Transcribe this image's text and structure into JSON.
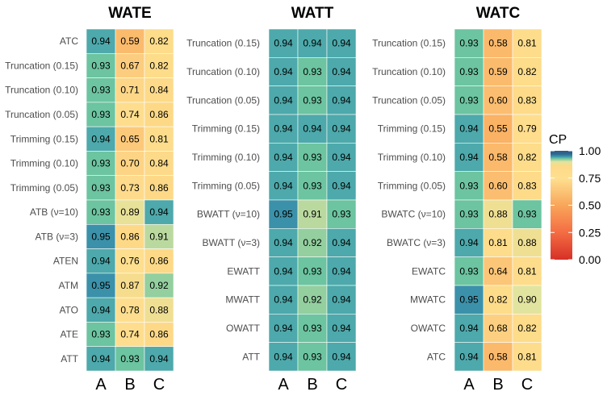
{
  "legend": {
    "title": "CP",
    "ticks": [
      "1.00",
      "0.75",
      "0.50",
      "0.25",
      "0.00"
    ],
    "tick_values": [
      1.0,
      0.75,
      0.5,
      0.25,
      0.0
    ],
    "range": [
      0,
      1
    ],
    "colors": [
      {
        "v": 0.0,
        "c": "#d73027"
      },
      {
        "v": 0.25,
        "c": "#f46d43"
      },
      {
        "v": 0.5,
        "c": "#f9a65a"
      },
      {
        "v": 0.75,
        "c": "#fee090"
      },
      {
        "v": 0.86,
        "c": "#fdd987"
      },
      {
        "v": 0.9,
        "c": "#e1e49e"
      },
      {
        "v": 0.93,
        "c": "#6cc4a0"
      },
      {
        "v": 0.945,
        "c": "#3d9bb0"
      },
      {
        "v": 0.97,
        "c": "#31688e"
      },
      {
        "v": 1.0,
        "c": "#2b5b8a"
      }
    ]
  },
  "chart_data": [
    {
      "type": "heatmap",
      "title": "WATE",
      "columns": [
        "A",
        "B",
        "C"
      ],
      "rows": [
        "ATC",
        "Truncation (0.15)",
        "Truncation (0.10)",
        "Truncation (0.05)",
        "Trimming (0.15)",
        "Trimming (0.10)",
        "Trimming (0.05)",
        "ATB (ν=10)",
        "ATB (ν=3)",
        "ATEN",
        "ATM",
        "ATO",
        "ATE",
        "ATT"
      ],
      "values": [
        [
          0.94,
          0.59,
          0.82
        ],
        [
          0.93,
          0.67,
          0.82
        ],
        [
          0.93,
          0.71,
          0.84
        ],
        [
          0.93,
          0.74,
          0.86
        ],
        [
          0.94,
          0.65,
          0.81
        ],
        [
          0.93,
          0.7,
          0.84
        ],
        [
          0.93,
          0.73,
          0.86
        ],
        [
          0.93,
          0.89,
          0.94
        ],
        [
          0.95,
          0.86,
          0.91
        ],
        [
          0.94,
          0.76,
          0.86
        ],
        [
          0.95,
          0.87,
          0.92
        ],
        [
          0.94,
          0.78,
          0.88
        ],
        [
          0.93,
          0.74,
          0.86
        ],
        [
          0.94,
          0.93,
          0.94
        ]
      ],
      "labels": [
        [
          "0.94",
          "0.59",
          "0.82"
        ],
        [
          "0.93",
          "0.67",
          "0.82"
        ],
        [
          "0.93",
          "0.71",
          "0.84"
        ],
        [
          "0.93",
          "0.74",
          "0.86"
        ],
        [
          "0.94",
          "0.65",
          "0.81"
        ],
        [
          "0.93",
          "0.70",
          "0.84"
        ],
        [
          "0.93",
          "0.73",
          "0.86"
        ],
        [
          "0.93",
          "0.89",
          "0.94"
        ],
        [
          "0.95",
          "0.86",
          "0.91"
        ],
        [
          "0.94",
          "0.76",
          "0.86"
        ],
        [
          "0.95",
          "0.87",
          "0.92"
        ],
        [
          "0.94",
          "0.78",
          "0.88"
        ],
        [
          "0.93",
          "0.74",
          "0.86"
        ],
        [
          "0.94",
          "0.93",
          "0.94"
        ]
      ]
    },
    {
      "type": "heatmap",
      "title": "WATT",
      "columns": [
        "A",
        "B",
        "C"
      ],
      "rows": [
        "Truncation (0.15)",
        "Truncation (0.10)",
        "Truncation (0.05)",
        "Trimming (0.15)",
        "Trimming (0.10)",
        "Trimming (0.05)",
        "BWATT (ν=10)",
        "BWATT (ν=3)",
        "EWATT",
        "MWATT",
        "OWATT",
        "ATT"
      ],
      "values": [
        [
          0.94,
          0.94,
          0.94
        ],
        [
          0.94,
          0.93,
          0.94
        ],
        [
          0.94,
          0.93,
          0.94
        ],
        [
          0.94,
          0.94,
          0.94
        ],
        [
          0.94,
          0.93,
          0.94
        ],
        [
          0.94,
          0.93,
          0.94
        ],
        [
          0.95,
          0.91,
          0.93
        ],
        [
          0.94,
          0.92,
          0.94
        ],
        [
          0.94,
          0.93,
          0.94
        ],
        [
          0.94,
          0.92,
          0.94
        ],
        [
          0.94,
          0.93,
          0.94
        ],
        [
          0.94,
          0.93,
          0.94
        ]
      ],
      "labels": [
        [
          "0.94",
          "0.94",
          "0.94"
        ],
        [
          "0.94",
          "0.93",
          "0.94"
        ],
        [
          "0.94",
          "0.93",
          "0.94"
        ],
        [
          "0.94",
          "0.94",
          "0.94"
        ],
        [
          "0.94",
          "0.93",
          "0.94"
        ],
        [
          "0.94",
          "0.93",
          "0.94"
        ],
        [
          "0.95",
          "0.91",
          "0.93"
        ],
        [
          "0.94",
          "0.92",
          "0.94"
        ],
        [
          "0.94",
          "0.93",
          "0.94"
        ],
        [
          "0.94",
          "0.92",
          "0.94"
        ],
        [
          "0.94",
          "0.93",
          "0.94"
        ],
        [
          "0.94",
          "0.93",
          "0.94"
        ]
      ]
    },
    {
      "type": "heatmap",
      "title": "WATC",
      "columns": [
        "A",
        "B",
        "C"
      ],
      "rows": [
        "Truncation (0.15)",
        "Truncation (0.10)",
        "Truncation (0.05)",
        "Trimming (0.15)",
        "Trimming (0.10)",
        "Trimming (0.05)",
        "BWATC (ν=10)",
        "BWATC (ν=3)",
        "EWATC",
        "MWATC",
        "OWATC",
        "ATC"
      ],
      "values": [
        [
          0.93,
          0.58,
          0.81
        ],
        [
          0.93,
          0.59,
          0.82
        ],
        [
          0.93,
          0.6,
          0.83
        ],
        [
          0.94,
          0.55,
          0.79
        ],
        [
          0.94,
          0.58,
          0.82
        ],
        [
          0.93,
          0.6,
          0.83
        ],
        [
          0.93,
          0.88,
          0.93
        ],
        [
          0.94,
          0.81,
          0.88
        ],
        [
          0.93,
          0.64,
          0.81
        ],
        [
          0.95,
          0.82,
          0.9
        ],
        [
          0.94,
          0.68,
          0.82
        ],
        [
          0.94,
          0.58,
          0.81
        ]
      ],
      "labels": [
        [
          "0.93",
          "0.58",
          "0.81"
        ],
        [
          "0.93",
          "0.59",
          "0.82"
        ],
        [
          "0.93",
          "0.60",
          "0.83"
        ],
        [
          "0.94",
          "0.55",
          "0.79"
        ],
        [
          "0.94",
          "0.58",
          "0.82"
        ],
        [
          "0.93",
          "0.60",
          "0.83"
        ],
        [
          "0.93",
          "0.88",
          "0.93"
        ],
        [
          "0.94",
          "0.81",
          "0.88"
        ],
        [
          "0.93",
          "0.64",
          "0.81"
        ],
        [
          "0.95",
          "0.82",
          "0.90"
        ],
        [
          "0.94",
          "0.68",
          "0.82"
        ],
        [
          "0.94",
          "0.58",
          "0.81"
        ]
      ]
    }
  ]
}
